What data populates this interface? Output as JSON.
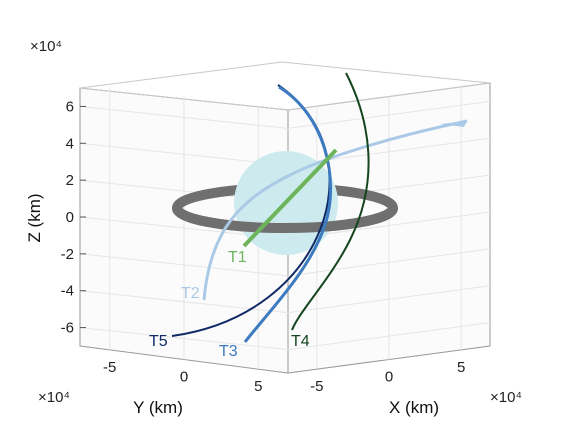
{
  "chart_data": {
    "type": "line",
    "subtype": "3d-trajectories",
    "title": "",
    "grid": true,
    "axes": {
      "x": {
        "label": "X (km)",
        "ticks": [
          -5,
          0,
          5
        ],
        "multiplier": "×10⁴",
        "range": [
          -7,
          7
        ]
      },
      "y": {
        "label": "Y (km)",
        "ticks": [
          -5,
          0,
          5
        ],
        "multiplier": "×10⁴",
        "range": [
          -7,
          7
        ]
      },
      "z": {
        "label": "Z (km)",
        "ticks": [
          -6,
          -4,
          -2,
          0,
          2,
          4,
          6
        ],
        "multiplier": "×10⁴",
        "range": [
          -7,
          7
        ]
      }
    },
    "series": [
      {
        "name": "T1",
        "color": "#6db55c"
      },
      {
        "name": "T2",
        "color": "#a9c9e6"
      },
      {
        "name": "T3",
        "color": "#3c7bbf"
      },
      {
        "name": "T4",
        "color": "#14451f"
      },
      {
        "name": "T5",
        "color": "#0f2a66"
      }
    ],
    "body": {
      "sphere_color": "#cdebee",
      "ring_color": "#707070"
    }
  }
}
